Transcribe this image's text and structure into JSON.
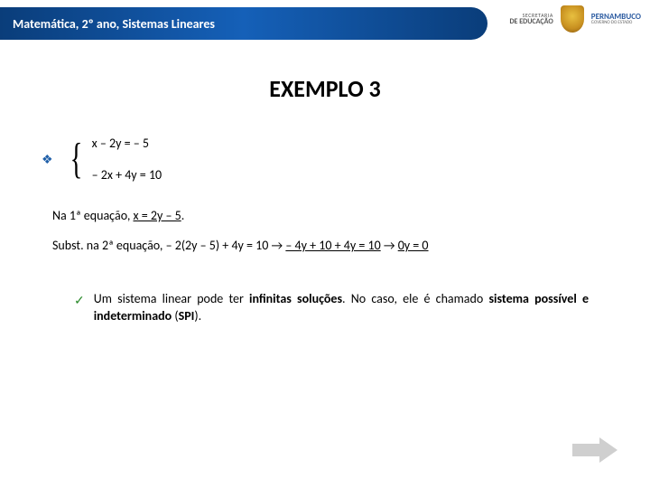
{
  "header": {
    "title": "Matemática, 2º ano, Sistemas Lineares",
    "logo_sec_small": "SECRETARIA",
    "logo_sec_big": "DE EDUCAÇÃO",
    "logo_state": "PERNAMBUCO",
    "logo_state_sub": "GOVERNO DO ESTADO"
  },
  "title": "EXEMPLO 3",
  "bullet_glyph": "❖",
  "system": {
    "eq1": "x – 2y = – 5",
    "eq2": "– 2x + 4y = 10"
  },
  "step1_a": "Na 1ª equação, ",
  "step1_u": "x = 2y – 5",
  "step1_b": ".",
  "step2_a": "Subst. na 2ª equação,  – 2(2y – 5) + 4y = 10  →  ",
  "step2_u1": "– 4y + 10 + 4y = 10",
  "step2_b": "  →  ",
  "step2_u2": "0y = 0",
  "check_glyph": "✓",
  "note_a": "Um sistema linear pode ter ",
  "note_b": "infinitas soluções",
  "note_c": ". No caso, ele é chamado ",
  "note_d": "sistema possível e indeterminado",
  "note_e": " (",
  "note_f": "SPI",
  "note_g": ").",
  "colors": {
    "header_blue": "#0a3d7a",
    "bullet": "#1f5fa8",
    "check": "#2a8a2a",
    "arrow": "#cfcfcf"
  }
}
